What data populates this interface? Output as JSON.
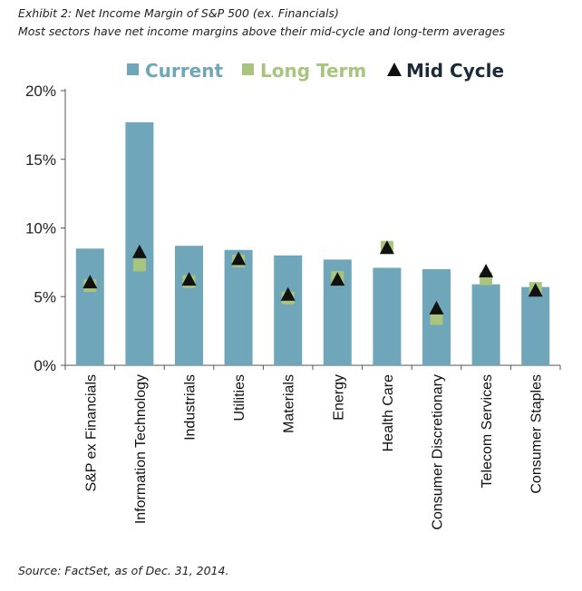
{
  "caption": {
    "title": "Exhibit 2: Net Income Margin of S&P 500 (ex. Financials)",
    "subtitle": "Most sectors have net income margins above their mid-cycle and long-term averages",
    "source": "Source: FactSet, as of Dec. 31, 2014."
  },
  "colors": {
    "current": "#6fa6b9",
    "long_term": "#a9c47f",
    "mid_cycle": "#111111"
  },
  "chart_data": {
    "type": "bar",
    "title": "Net Income Margin of S&P 500 (ex. Financials)",
    "categories": [
      "S&P ex Financials",
      "Information Technology",
      "Industrials",
      "Utilities",
      "Materials",
      "Energy",
      "Health Care",
      "Consumer Discretionary",
      "Telecom Services",
      "Consumer Staples"
    ],
    "series": [
      {
        "name": "Current",
        "kind": "bar",
        "values": [
          8.5,
          17.7,
          8.7,
          8.4,
          8.0,
          7.7,
          7.1,
          7.0,
          5.9,
          5.7
        ]
      },
      {
        "name": "Long Term",
        "kind": "square-marker",
        "values": [
          5.8,
          7.3,
          6.1,
          7.6,
          4.9,
          6.4,
          8.6,
          3.4,
          6.3,
          5.6
        ]
      },
      {
        "name": "Mid Cycle",
        "kind": "triangle-marker",
        "values": [
          6.0,
          8.2,
          6.2,
          7.7,
          5.1,
          6.2,
          8.5,
          4.1,
          6.8,
          5.4
        ]
      }
    ],
    "y_ticks": [
      "0%",
      "5%",
      "10%",
      "15%",
      "20%"
    ],
    "ylim": [
      0,
      20
    ],
    "xlabel": "",
    "ylabel": "",
    "legend": [
      "Current",
      "Long Term",
      "Mid Cycle"
    ],
    "legend_position": "top",
    "grid": false
  }
}
